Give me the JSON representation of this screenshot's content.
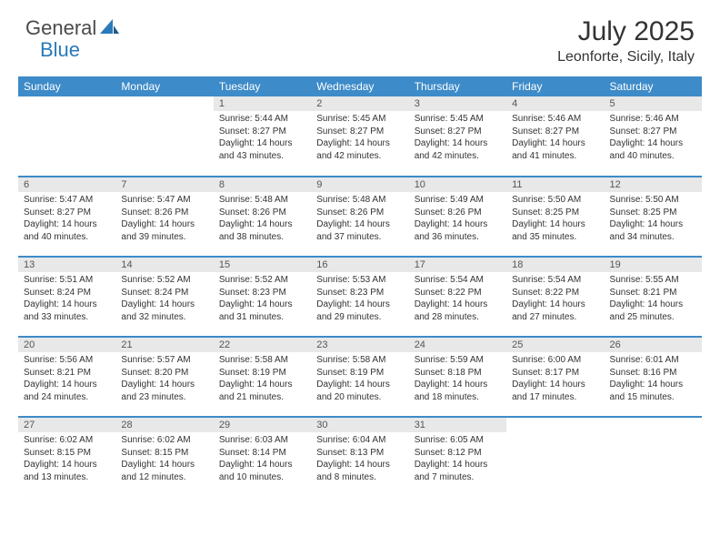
{
  "logo": {
    "text1": "General",
    "text2": "Blue"
  },
  "title": "July 2025",
  "location": "Leonforte, Sicily, Italy",
  "colors": {
    "header_bg": "#3d8bc8",
    "header_fg": "#ffffff",
    "daynum_bg": "#e8e8e8",
    "border": "#3d8bc8",
    "logo_gray": "#4a4a4a",
    "logo_blue": "#2a7ab8"
  },
  "daynames": [
    "Sunday",
    "Monday",
    "Tuesday",
    "Wednesday",
    "Thursday",
    "Friday",
    "Saturday"
  ],
  "weeks": [
    [
      null,
      null,
      {
        "n": "1",
        "sr": "Sunrise: 5:44 AM",
        "ss": "Sunset: 8:27 PM",
        "dl": "Daylight: 14 hours and 43 minutes."
      },
      {
        "n": "2",
        "sr": "Sunrise: 5:45 AM",
        "ss": "Sunset: 8:27 PM",
        "dl": "Daylight: 14 hours and 42 minutes."
      },
      {
        "n": "3",
        "sr": "Sunrise: 5:45 AM",
        "ss": "Sunset: 8:27 PM",
        "dl": "Daylight: 14 hours and 42 minutes."
      },
      {
        "n": "4",
        "sr": "Sunrise: 5:46 AM",
        "ss": "Sunset: 8:27 PM",
        "dl": "Daylight: 14 hours and 41 minutes."
      },
      {
        "n": "5",
        "sr": "Sunrise: 5:46 AM",
        "ss": "Sunset: 8:27 PM",
        "dl": "Daylight: 14 hours and 40 minutes."
      }
    ],
    [
      {
        "n": "6",
        "sr": "Sunrise: 5:47 AM",
        "ss": "Sunset: 8:27 PM",
        "dl": "Daylight: 14 hours and 40 minutes."
      },
      {
        "n": "7",
        "sr": "Sunrise: 5:47 AM",
        "ss": "Sunset: 8:26 PM",
        "dl": "Daylight: 14 hours and 39 minutes."
      },
      {
        "n": "8",
        "sr": "Sunrise: 5:48 AM",
        "ss": "Sunset: 8:26 PM",
        "dl": "Daylight: 14 hours and 38 minutes."
      },
      {
        "n": "9",
        "sr": "Sunrise: 5:48 AM",
        "ss": "Sunset: 8:26 PM",
        "dl": "Daylight: 14 hours and 37 minutes."
      },
      {
        "n": "10",
        "sr": "Sunrise: 5:49 AM",
        "ss": "Sunset: 8:26 PM",
        "dl": "Daylight: 14 hours and 36 minutes."
      },
      {
        "n": "11",
        "sr": "Sunrise: 5:50 AM",
        "ss": "Sunset: 8:25 PM",
        "dl": "Daylight: 14 hours and 35 minutes."
      },
      {
        "n": "12",
        "sr": "Sunrise: 5:50 AM",
        "ss": "Sunset: 8:25 PM",
        "dl": "Daylight: 14 hours and 34 minutes."
      }
    ],
    [
      {
        "n": "13",
        "sr": "Sunrise: 5:51 AM",
        "ss": "Sunset: 8:24 PM",
        "dl": "Daylight: 14 hours and 33 minutes."
      },
      {
        "n": "14",
        "sr": "Sunrise: 5:52 AM",
        "ss": "Sunset: 8:24 PM",
        "dl": "Daylight: 14 hours and 32 minutes."
      },
      {
        "n": "15",
        "sr": "Sunrise: 5:52 AM",
        "ss": "Sunset: 8:23 PM",
        "dl": "Daylight: 14 hours and 31 minutes."
      },
      {
        "n": "16",
        "sr": "Sunrise: 5:53 AM",
        "ss": "Sunset: 8:23 PM",
        "dl": "Daylight: 14 hours and 29 minutes."
      },
      {
        "n": "17",
        "sr": "Sunrise: 5:54 AM",
        "ss": "Sunset: 8:22 PM",
        "dl": "Daylight: 14 hours and 28 minutes."
      },
      {
        "n": "18",
        "sr": "Sunrise: 5:54 AM",
        "ss": "Sunset: 8:22 PM",
        "dl": "Daylight: 14 hours and 27 minutes."
      },
      {
        "n": "19",
        "sr": "Sunrise: 5:55 AM",
        "ss": "Sunset: 8:21 PM",
        "dl": "Daylight: 14 hours and 25 minutes."
      }
    ],
    [
      {
        "n": "20",
        "sr": "Sunrise: 5:56 AM",
        "ss": "Sunset: 8:21 PM",
        "dl": "Daylight: 14 hours and 24 minutes."
      },
      {
        "n": "21",
        "sr": "Sunrise: 5:57 AM",
        "ss": "Sunset: 8:20 PM",
        "dl": "Daylight: 14 hours and 23 minutes."
      },
      {
        "n": "22",
        "sr": "Sunrise: 5:58 AM",
        "ss": "Sunset: 8:19 PM",
        "dl": "Daylight: 14 hours and 21 minutes."
      },
      {
        "n": "23",
        "sr": "Sunrise: 5:58 AM",
        "ss": "Sunset: 8:19 PM",
        "dl": "Daylight: 14 hours and 20 minutes."
      },
      {
        "n": "24",
        "sr": "Sunrise: 5:59 AM",
        "ss": "Sunset: 8:18 PM",
        "dl": "Daylight: 14 hours and 18 minutes."
      },
      {
        "n": "25",
        "sr": "Sunrise: 6:00 AM",
        "ss": "Sunset: 8:17 PM",
        "dl": "Daylight: 14 hours and 17 minutes."
      },
      {
        "n": "26",
        "sr": "Sunrise: 6:01 AM",
        "ss": "Sunset: 8:16 PM",
        "dl": "Daylight: 14 hours and 15 minutes."
      }
    ],
    [
      {
        "n": "27",
        "sr": "Sunrise: 6:02 AM",
        "ss": "Sunset: 8:15 PM",
        "dl": "Daylight: 14 hours and 13 minutes."
      },
      {
        "n": "28",
        "sr": "Sunrise: 6:02 AM",
        "ss": "Sunset: 8:15 PM",
        "dl": "Daylight: 14 hours and 12 minutes."
      },
      {
        "n": "29",
        "sr": "Sunrise: 6:03 AM",
        "ss": "Sunset: 8:14 PM",
        "dl": "Daylight: 14 hours and 10 minutes."
      },
      {
        "n": "30",
        "sr": "Sunrise: 6:04 AM",
        "ss": "Sunset: 8:13 PM",
        "dl": "Daylight: 14 hours and 8 minutes."
      },
      {
        "n": "31",
        "sr": "Sunrise: 6:05 AM",
        "ss": "Sunset: 8:12 PM",
        "dl": "Daylight: 14 hours and 7 minutes."
      },
      null,
      null
    ]
  ]
}
